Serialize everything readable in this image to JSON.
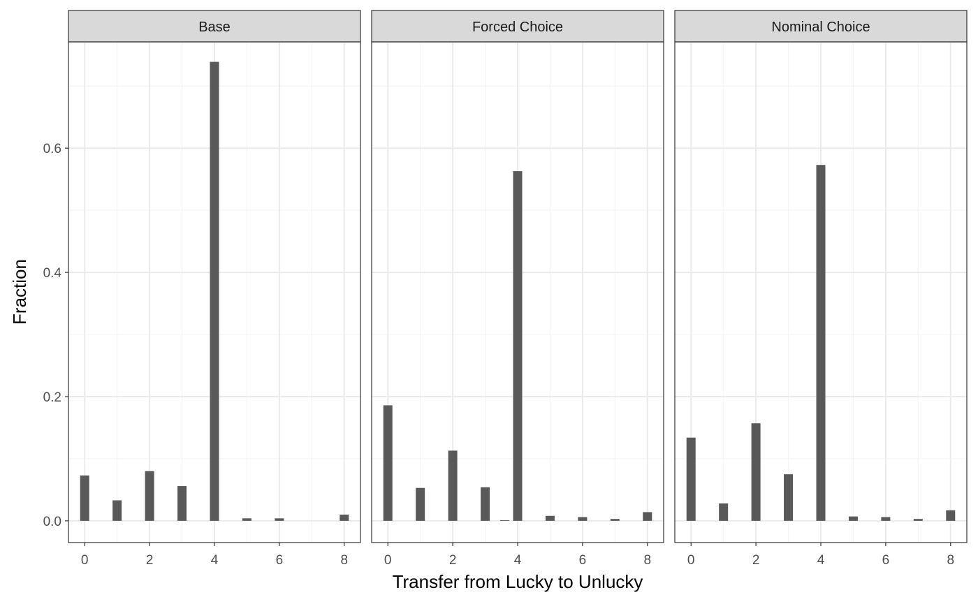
{
  "chart_data": {
    "type": "bar",
    "xlabel": "Transfer from Lucky to Unlucky",
    "ylabel": "Fraction",
    "xlim": [
      -0.5,
      8.5
    ],
    "ylim": [
      -0.035,
      0.77
    ],
    "x_ticks": [
      0,
      2,
      4,
      6,
      8
    ],
    "y_ticks": [
      0.0,
      0.2,
      0.4,
      0.6
    ],
    "y_tick_labels": [
      "0.0",
      "0.2",
      "0.4",
      "0.6"
    ],
    "grid": true,
    "facets": [
      {
        "name": "Base",
        "bars": [
          {
            "x": 0,
            "y": 0.073
          },
          {
            "x": 1,
            "y": 0.033
          },
          {
            "x": 2,
            "y": 0.08
          },
          {
            "x": 3,
            "y": 0.056
          },
          {
            "x": 4,
            "y": 0.739
          },
          {
            "x": 5,
            "y": 0.004
          },
          {
            "x": 6,
            "y": 0.004
          },
          {
            "x": 8,
            "y": 0.01
          }
        ]
      },
      {
        "name": "Forced Choice",
        "bars": [
          {
            "x": 0,
            "y": 0.186
          },
          {
            "x": 1,
            "y": 0.053
          },
          {
            "x": 2,
            "y": 0.113
          },
          {
            "x": 3,
            "y": 0.054
          },
          {
            "x": 3.6,
            "y": 0.001
          },
          {
            "x": 4,
            "y": 0.563
          },
          {
            "x": 5,
            "y": 0.008
          },
          {
            "x": 6,
            "y": 0.006
          },
          {
            "x": 7,
            "y": 0.003
          },
          {
            "x": 8,
            "y": 0.014
          }
        ]
      },
      {
        "name": "Nominal Choice",
        "bars": [
          {
            "x": 0,
            "y": 0.134
          },
          {
            "x": 1,
            "y": 0.028
          },
          {
            "x": 2,
            "y": 0.157
          },
          {
            "x": 3,
            "y": 0.075
          },
          {
            "x": 4,
            "y": 0.573
          },
          {
            "x": 5,
            "y": 0.007
          },
          {
            "x": 6,
            "y": 0.006
          },
          {
            "x": 7,
            "y": 0.003
          },
          {
            "x": 8,
            "y": 0.017
          }
        ]
      }
    ]
  }
}
